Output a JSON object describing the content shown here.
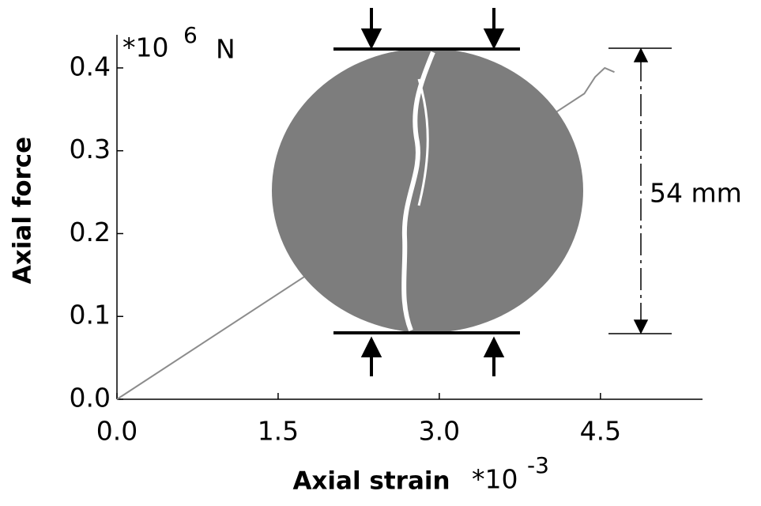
{
  "chart_data": {
    "type": "line",
    "x_label": "Axial strain",
    "y_label": "Axial force",
    "x_unit": "*10",
    "x_unit_exp": "-3",
    "y_unit": "*10",
    "y_unit_exp": "6",
    "y_unit_suffix": "N",
    "annotation": "54 mm",
    "x": [
      0,
      4.35,
      4.45,
      4.54,
      4.63
    ],
    "series": [
      {
        "color": "#8c8c8c",
        "values": [
          0,
          0.369,
          0.389,
          0.4,
          0.395
        ]
      }
    ],
    "xlim": [
      0,
      5.45
    ],
    "ylim": [
      0,
      0.44
    ],
    "xticks": [
      {
        "value": 0,
        "label": "0.0"
      },
      1.5,
      {
        "value": 3,
        "label": "3.0"
      },
      4.5
    ],
    "yticks": [
      {
        "value": 0,
        "label": "0.0"
      },
      0.1,
      0.2,
      0.3,
      0.4
    ]
  }
}
